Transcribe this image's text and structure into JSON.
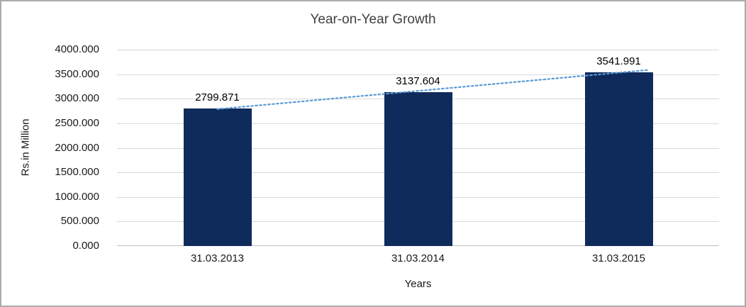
{
  "chart_data": {
    "type": "bar",
    "title": "Year-on-Year Growth",
    "xlabel": "Years",
    "ylabel": "Rs.in Million",
    "categories": [
      "31.03.2013",
      "31.03.2014",
      "31.03.2015"
    ],
    "values": [
      2799.871,
      3137.604,
      3541.991
    ],
    "data_labels": [
      "2799.871",
      "3137.604",
      "3541.991"
    ],
    "ylim": [
      0,
      4000
    ],
    "y_tick_step": 500,
    "y_tick_labels": [
      "0.000",
      "500.000",
      "1000.000",
      "1500.000",
      "2000.000",
      "2500.000",
      "3000.000",
      "3500.000",
      "4000.000"
    ],
    "grid": true,
    "legend": "none",
    "trendline": {
      "type": "linear",
      "style": "dotted",
      "color": "#5B9BD5"
    },
    "colors": {
      "bar": "#0F2B5B",
      "gridline": "#D9D9D9",
      "axis_line": "#BFBFBF",
      "title_text": "#404040",
      "label_text": "#000000"
    }
  }
}
